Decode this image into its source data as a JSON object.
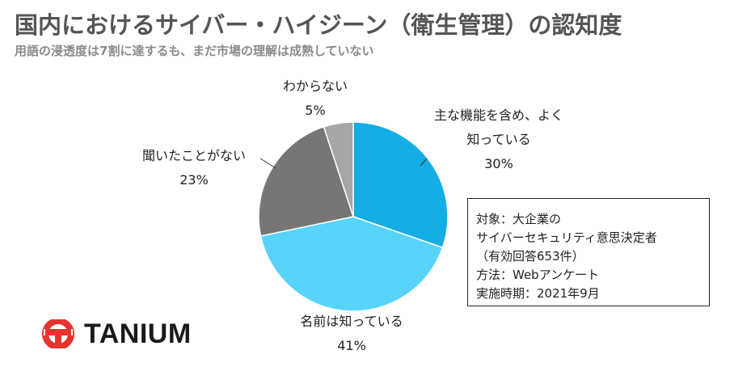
{
  "header": {
    "title": "国内におけるサイバー・ハイジーン（衛生管理）の認知度",
    "subtitle": "用語の浸透度は7割に達するも、まだ市場の理解は成熟していない"
  },
  "chart_data": {
    "type": "pie",
    "categories": [
      "主な機能を含め、よく知っている",
      "名前は知っている",
      "聞いたことがない",
      "わからない"
    ],
    "values": [
      30,
      41,
      23,
      5
    ],
    "unit": "%",
    "colors": [
      "#14ade4",
      "#58d4fb",
      "#767676",
      "#a6a6a6"
    ]
  },
  "labels": {
    "s0": {
      "line1": "主な機能を含め、よく",
      "line2": "知っている",
      "pct": "30%"
    },
    "s1": {
      "name": "名前は知っている",
      "pct": "41%"
    },
    "s2": {
      "name": "聞いたことがない",
      "pct": "23%"
    },
    "s3": {
      "name": "わからない",
      "pct": "5%"
    }
  },
  "survey": {
    "line1": "対象：大企業の",
    "line2": "サイバーセキュリティ意思決定者",
    "line3": "（有効回答653件）",
    "line4": "方法：Webアンケート",
    "line5": "実施時期：2021年9月"
  },
  "logo": {
    "brand": "TANIUM",
    "color": "#e8322e"
  }
}
